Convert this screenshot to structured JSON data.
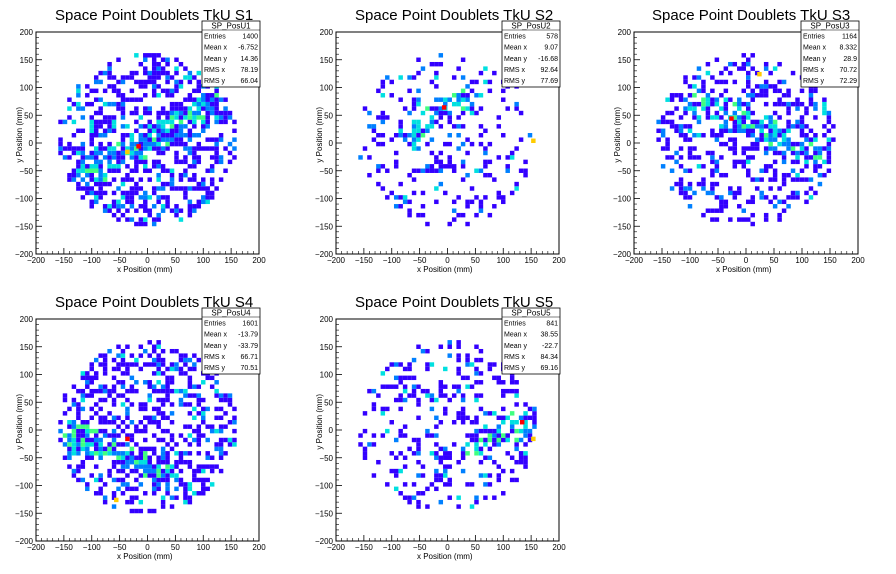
{
  "chart_data": [
    {
      "type": "heatmap",
      "title": "Space Point Doublets TkU S1",
      "xlabel": "x Position (mm)",
      "ylabel": "y Position (mm)",
      "xlim": [
        -200,
        200
      ],
      "ylim": [
        -200,
        200
      ],
      "xticks": [
        "−200",
        "−150",
        "−100",
        "−50",
        "0",
        "50",
        "100",
        "150",
        "200"
      ],
      "yticks": [
        "−200",
        "−150",
        "−100",
        "−50",
        "0",
        "50",
        "100",
        "150",
        "200"
      ],
      "stats": {
        "name": "SP_PosU1",
        "rows": [
          [
            "Entries",
            "1400"
          ],
          [
            "Mean x",
            "-6.752"
          ],
          [
            "Mean y",
            "14.36"
          ],
          [
            "RMS x",
            "78.19"
          ],
          [
            "RMS y",
            "66.04"
          ]
        ]
      },
      "band": {
        "x1": -110,
        "y1": -60,
        "x2": 120,
        "y2": 70
      },
      "extent": {
        "xmin": -160,
        "xmax": 160,
        "ymin": -150,
        "ymax": 160
      },
      "density": 0.78,
      "hot": [
        [
          -20,
          -10
        ],
        [
          -40,
          -20
        ]
      ]
    },
    {
      "type": "heatmap",
      "title": "Space Point Doublets TkU S2",
      "xlabel": "x Position (mm)",
      "ylabel": "y Position (mm)",
      "xlim": [
        -200,
        200
      ],
      "ylim": [
        -200,
        200
      ],
      "xticks": [
        "−200",
        "−150",
        "−100",
        "−50",
        "0",
        "50",
        "100",
        "150",
        "200"
      ],
      "yticks": [
        "−200",
        "−150",
        "−100",
        "−50",
        "0",
        "50",
        "100",
        "150",
        "200"
      ],
      "stats": {
        "name": "SP_PosU2",
        "rows": [
          [
            "Entries",
            "578"
          ],
          [
            "Mean x",
            "9.07"
          ],
          [
            "Mean y",
            "-16.68"
          ],
          [
            "RMS x",
            "92.64"
          ],
          [
            "RMS y",
            "77.69"
          ]
        ]
      },
      "band": {
        "x1": -80,
        "y1": 10,
        "x2": 40,
        "y2": 80
      },
      "extent": {
        "xmin": -160,
        "xmax": 160,
        "ymin": -150,
        "ymax": 160
      },
      "density": 0.38,
      "hot": [
        [
          -10,
          60
        ],
        [
          150,
          0
        ]
      ]
    },
    {
      "type": "heatmap",
      "title": "Space Point Doublets TkU S3",
      "xlabel": "x Position (mm)",
      "ylabel": "y Position (mm)",
      "xlim": [
        -200,
        200
      ],
      "ylim": [
        -200,
        200
      ],
      "xticks": [
        "−200",
        "−150",
        "−100",
        "−50",
        "0",
        "50",
        "100",
        "150",
        "200"
      ],
      "yticks": [
        "−200",
        "−150",
        "−100",
        "−50",
        "0",
        "50",
        "100",
        "150",
        "200"
      ],
      "stats": {
        "name": "SP_PosU3",
        "rows": [
          [
            "Entries",
            "1164"
          ],
          [
            "Mean x",
            "8.332"
          ],
          [
            "Mean y",
            "28.9"
          ],
          [
            "RMS x",
            "70.72"
          ],
          [
            "RMS y",
            "72.29"
          ]
        ]
      },
      "band": {
        "x1": -80,
        "y1": 70,
        "x2": 130,
        "y2": -20
      },
      "extent": {
        "xmin": -160,
        "xmax": 160,
        "ymin": -150,
        "ymax": 160
      },
      "density": 0.62,
      "hot": [
        [
          -30,
          40
        ],
        [
          20,
          120
        ]
      ]
    },
    {
      "type": "heatmap",
      "title": "Space Point Doublets TkU S4",
      "xlabel": "x Position (mm)",
      "ylabel": "y Position (mm)",
      "xlim": [
        -200,
        200
      ],
      "ylim": [
        -200,
        200
      ],
      "xticks": [
        "−200",
        "−150",
        "−100",
        "−50",
        "0",
        "50",
        "100",
        "150",
        "200"
      ],
      "yticks": [
        "−200",
        "−150",
        "−100",
        "−50",
        "0",
        "50",
        "100",
        "150",
        "200"
      ],
      "stats": {
        "name": "SP_PosU4",
        "rows": [
          [
            "Entries",
            "1601"
          ],
          [
            "Mean x",
            "-13.79"
          ],
          [
            "Mean y",
            "-33.79"
          ],
          [
            "RMS x",
            "66.71"
          ],
          [
            "RMS y",
            "70.51"
          ]
        ]
      },
      "band": {
        "x1": -130,
        "y1": -10,
        "x2": 30,
        "y2": -80
      },
      "extent": {
        "xmin": -160,
        "xmax": 160,
        "ymin": -150,
        "ymax": 160
      },
      "density": 0.82,
      "hot": [
        [
          -40,
          -20
        ],
        [
          -60,
          -130
        ]
      ]
    },
    {
      "type": "heatmap",
      "title": "Space Point Doublets TkU S5",
      "xlabel": "x Position (mm)",
      "ylabel": "y Position (mm)",
      "xlim": [
        -200,
        200
      ],
      "ylim": [
        -200,
        200
      ],
      "xticks": [
        "−200",
        "−150",
        "−100",
        "−50",
        "0",
        "50",
        "100",
        "150",
        "200"
      ],
      "yticks": [
        "−200",
        "−150",
        "−100",
        "−50",
        "0",
        "50",
        "100",
        "150",
        "200"
      ],
      "stats": {
        "name": "SP_PosU5",
        "rows": [
          [
            "Entries",
            "841"
          ],
          [
            "Mean x",
            "38.55"
          ],
          [
            "Mean y",
            "-22.7"
          ],
          [
            "RMS x",
            "84.34"
          ],
          [
            "RMS y",
            "69.16"
          ]
        ]
      },
      "band": {
        "x1": 40,
        "y1": -30,
        "x2": 150,
        "y2": 20
      },
      "extent": {
        "xmin": -160,
        "xmax": 160,
        "ymin": -150,
        "ymax": 160
      },
      "density": 0.48,
      "hot": [
        [
          130,
          10
        ],
        [
          150,
          -20
        ]
      ]
    }
  ],
  "colors": {
    "low": "#3300ff",
    "mid_low": "#0080ff",
    "mid": "#00e0e0",
    "mid_high": "#40ff80",
    "high": "#ffcc00",
    "max": "#ff0000"
  }
}
